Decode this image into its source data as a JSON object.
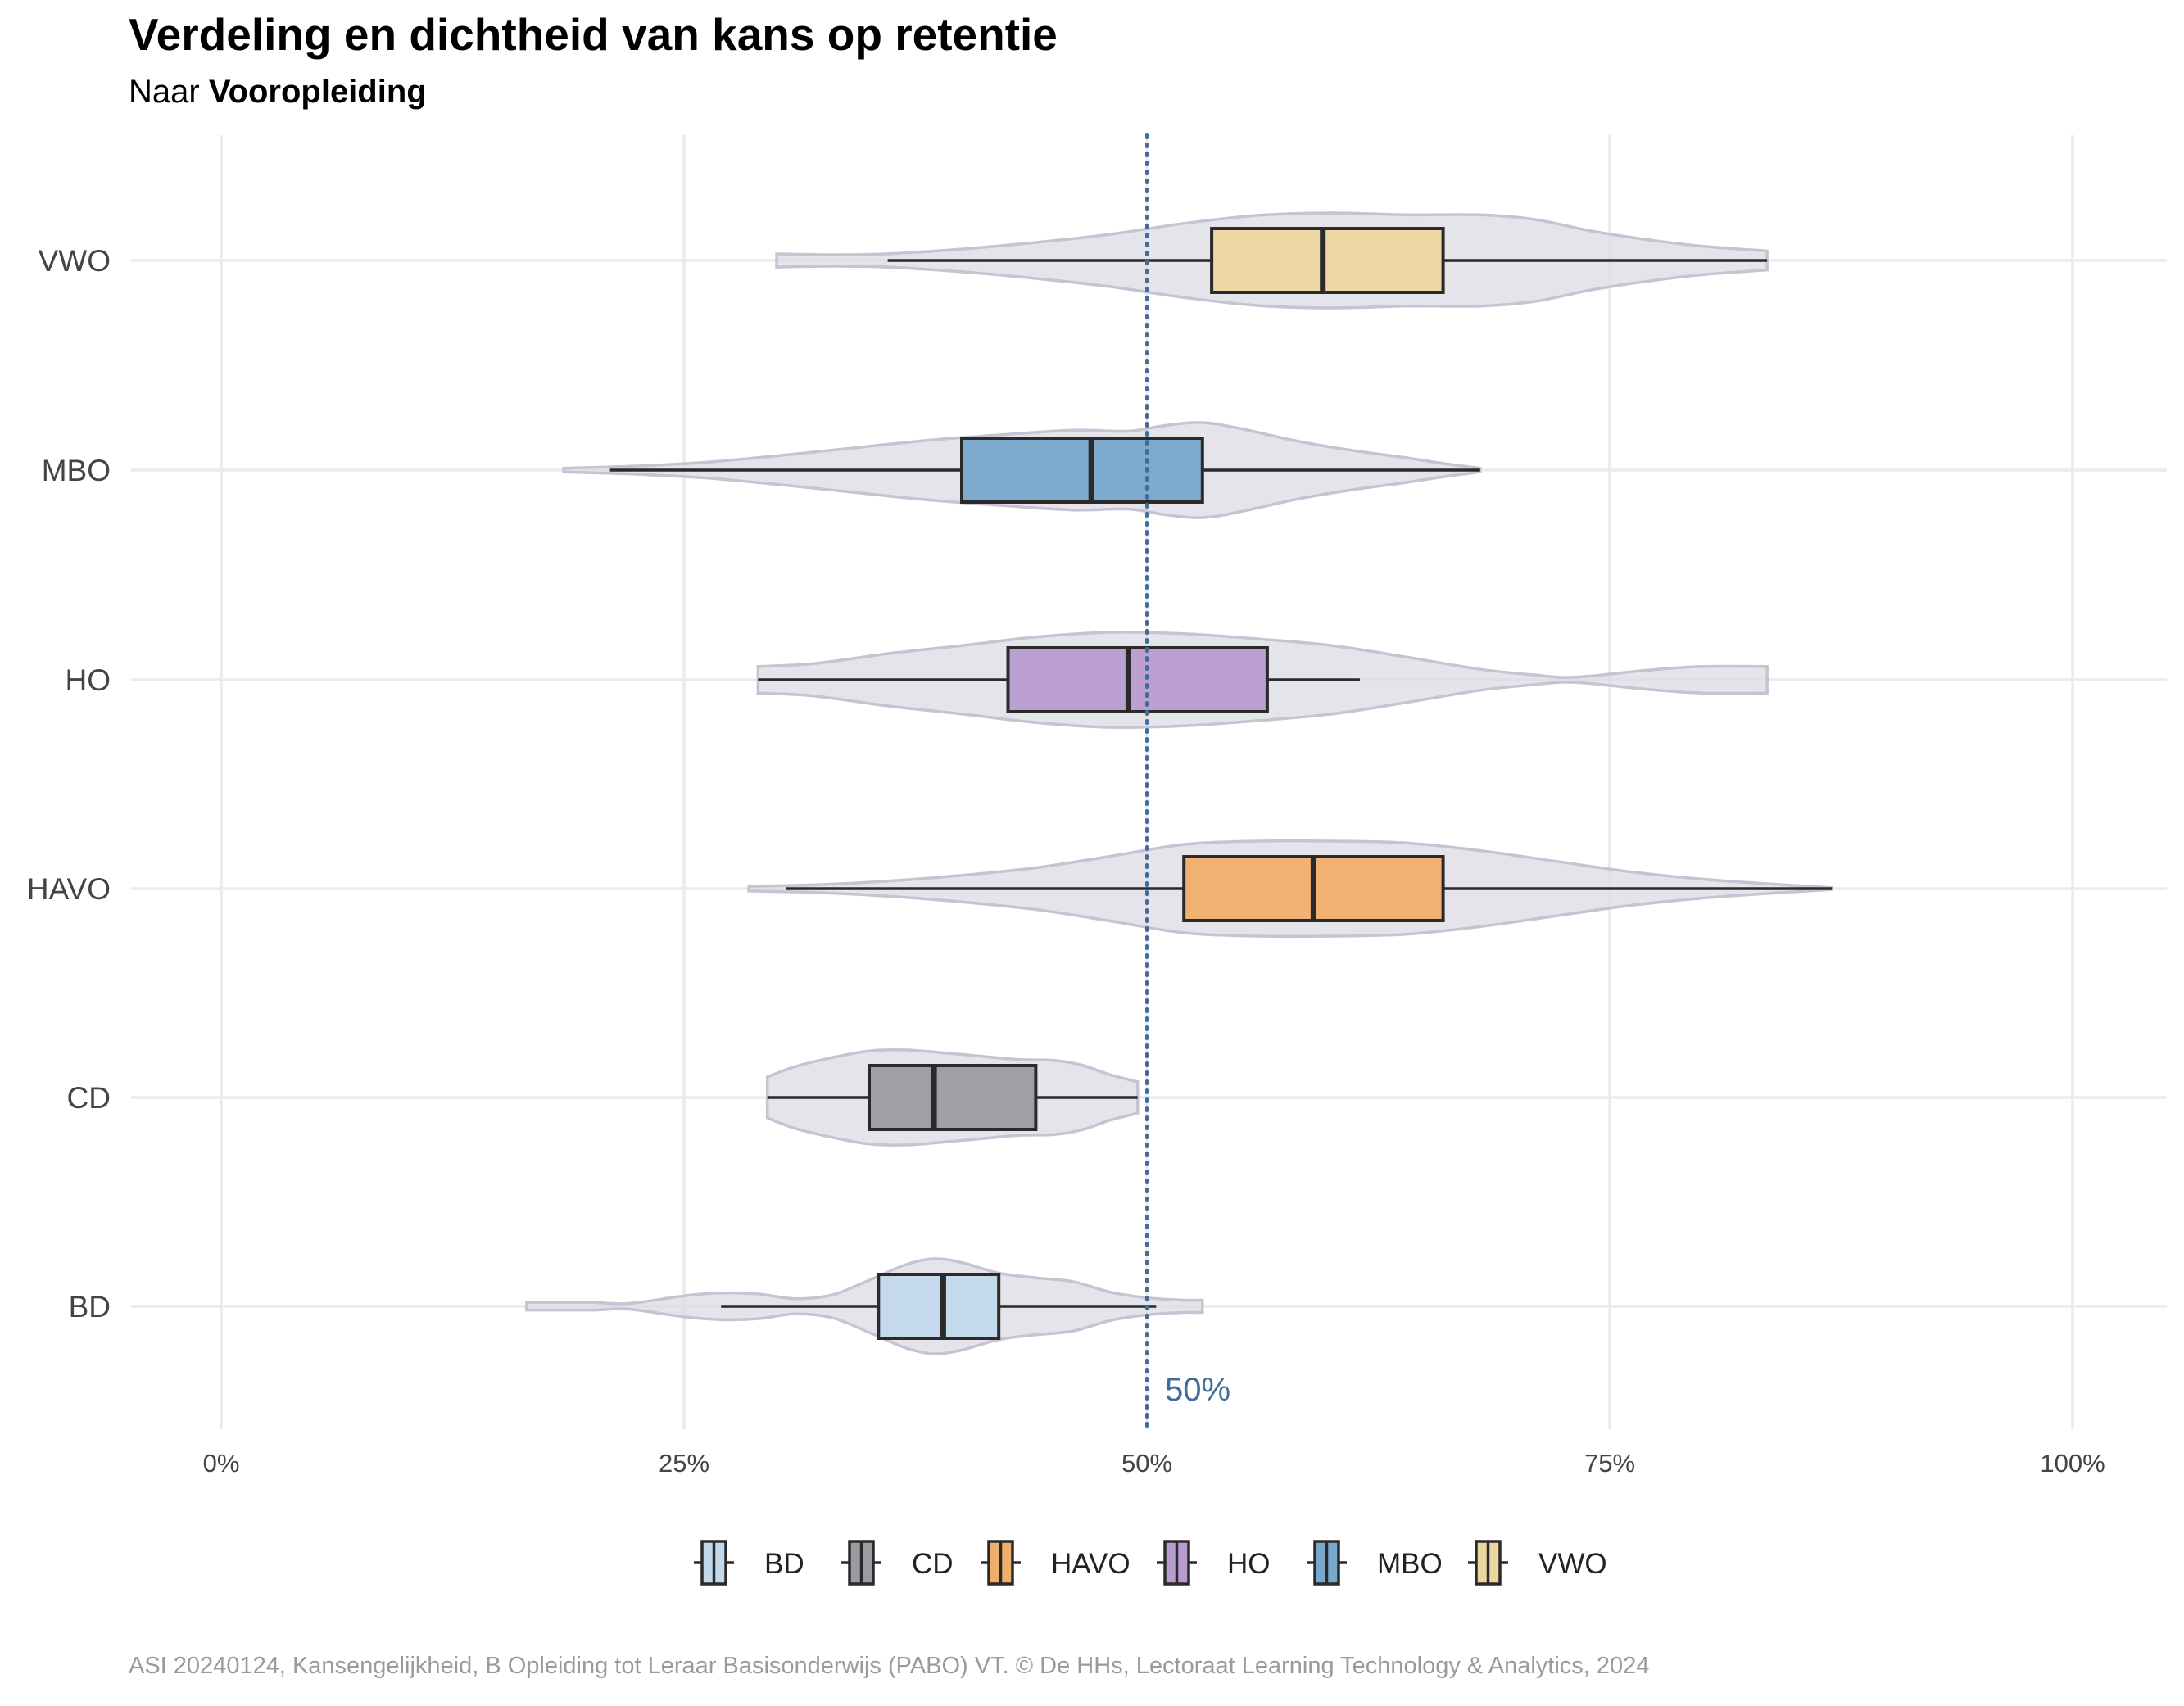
{
  "chart_data": {
    "type": "violin-boxplot",
    "orientation": "horizontal",
    "title": "Verdeling en dichtheid van kans op retentie",
    "subtitle_prefix": "Naar ",
    "subtitle_bold": "Vooropleiding",
    "xlabel": "",
    "ylabel": "",
    "xlim": [
      0,
      100
    ],
    "x_ticks": [
      0,
      25,
      50,
      75,
      100
    ],
    "x_tick_labels": [
      "0%",
      "25%",
      "50%",
      "75%",
      "100%"
    ],
    "grid": true,
    "reference_line": {
      "value": 50,
      "label": "50%",
      "color": "#3f6d9a",
      "style": "dotted"
    },
    "legend_position": "bottom",
    "categories": [
      "BD",
      "CD",
      "HAVO",
      "HO",
      "MBO",
      "VWO"
    ],
    "series": [
      {
        "name": "BD",
        "color": "#c2d9ec",
        "box": {
          "whisker_low": 27,
          "q1": 35.5,
          "median": 39,
          "q3": 42,
          "whisker_high": 50.5
        },
        "violin_range": [
          16.5,
          53
        ],
        "density": [
          [
            16.5,
            0.08
          ],
          [
            20,
            0.08
          ],
          [
            22,
            0.06
          ],
          [
            25,
            0.22
          ],
          [
            27,
            0.28
          ],
          [
            29,
            0.26
          ],
          [
            31,
            0.16
          ],
          [
            33,
            0.24
          ],
          [
            35,
            0.55
          ],
          [
            37,
            0.88
          ],
          [
            38.5,
            1.0
          ],
          [
            40,
            0.92
          ],
          [
            42,
            0.7
          ],
          [
            44,
            0.6
          ],
          [
            46,
            0.52
          ],
          [
            48,
            0.3
          ],
          [
            50,
            0.18
          ],
          [
            52,
            0.13
          ],
          [
            53,
            0.13
          ]
        ]
      },
      {
        "name": "CD",
        "color": "#9a9ca1",
        "box": {
          "whisker_low": 29.5,
          "q1": 35,
          "median": 38.5,
          "q3": 44,
          "whisker_high": 49.5
        },
        "violin_range": [
          29.5,
          49.5
        ],
        "density": [
          [
            29.5,
            0.43
          ],
          [
            31,
            0.65
          ],
          [
            33,
            0.84
          ],
          [
            35,
            0.98
          ],
          [
            37,
            1.0
          ],
          [
            39,
            0.94
          ],
          [
            41,
            0.87
          ],
          [
            43,
            0.8
          ],
          [
            45,
            0.78
          ],
          [
            46.5,
            0.68
          ],
          [
            48,
            0.48
          ],
          [
            49.5,
            0.33
          ]
        ]
      },
      {
        "name": "HAVO",
        "color": "#f0ae6c",
        "box": {
          "whisker_low": 30.5,
          "q1": 52,
          "median": 59,
          "q3": 66,
          "whisker_high": 87
        },
        "violin_range": [
          28.5,
          87
        ],
        "density": [
          [
            28.5,
            0.05
          ],
          [
            32,
            0.08
          ],
          [
            36,
            0.16
          ],
          [
            40,
            0.28
          ],
          [
            44,
            0.44
          ],
          [
            48,
            0.68
          ],
          [
            52,
            0.93
          ],
          [
            56,
            1.0
          ],
          [
            60,
            1.0
          ],
          [
            64,
            0.96
          ],
          [
            68,
            0.8
          ],
          [
            72,
            0.58
          ],
          [
            76,
            0.36
          ],
          [
            80,
            0.2
          ],
          [
            84,
            0.09
          ],
          [
            87,
            0.02
          ]
        ]
      },
      {
        "name": "HO",
        "color": "#b89cd0",
        "box": {
          "whisker_low": 29,
          "q1": 42.5,
          "median": 49,
          "q3": 56.5,
          "whisker_high": 61.5
        },
        "violin_range": [
          29,
          83.5
        ],
        "density": [
          [
            29,
            0.28
          ],
          [
            32,
            0.34
          ],
          [
            36,
            0.55
          ],
          [
            40,
            0.72
          ],
          [
            44,
            0.9
          ],
          [
            48,
            1.0
          ],
          [
            52,
            0.97
          ],
          [
            56,
            0.86
          ],
          [
            60,
            0.72
          ],
          [
            64,
            0.48
          ],
          [
            68,
            0.22
          ],
          [
            71,
            0.1
          ],
          [
            72.5,
            0.05
          ],
          [
            74,
            0.08
          ],
          [
            77,
            0.2
          ],
          [
            80,
            0.28
          ],
          [
            83.5,
            0.28
          ]
        ]
      },
      {
        "name": "MBO",
        "color": "#78a8cb",
        "box": {
          "whisker_low": 21,
          "q1": 40,
          "median": 47,
          "q3": 53,
          "whisker_high": 68
        },
        "violin_range": [
          18.5,
          68
        ],
        "density": [
          [
            18.5,
            0.04
          ],
          [
            22,
            0.08
          ],
          [
            26,
            0.16
          ],
          [
            30,
            0.3
          ],
          [
            34,
            0.46
          ],
          [
            38,
            0.62
          ],
          [
            42,
            0.74
          ],
          [
            46,
            0.84
          ],
          [
            49,
            0.82
          ],
          [
            51,
            0.94
          ],
          [
            53,
            1.0
          ],
          [
            55,
            0.88
          ],
          [
            58,
            0.62
          ],
          [
            61,
            0.42
          ],
          [
            64,
            0.26
          ],
          [
            66,
            0.14
          ],
          [
            68,
            0.04
          ]
        ]
      },
      {
        "name": "VWO",
        "color": "#edd7a1",
        "box": {
          "whisker_low": 36,
          "q1": 53.5,
          "median": 59.5,
          "q3": 66,
          "whisker_high": 83.5
        },
        "violin_range": [
          30,
          83.5
        ],
        "density": [
          [
            30,
            0.14
          ],
          [
            33,
            0.12
          ],
          [
            36,
            0.14
          ],
          [
            40,
            0.24
          ],
          [
            44,
            0.38
          ],
          [
            48,
            0.55
          ],
          [
            52,
            0.78
          ],
          [
            56,
            0.95
          ],
          [
            60,
            1.0
          ],
          [
            64,
            0.96
          ],
          [
            68,
            0.96
          ],
          [
            71,
            0.86
          ],
          [
            74,
            0.62
          ],
          [
            77,
            0.44
          ],
          [
            80,
            0.3
          ],
          [
            83.5,
            0.2
          ]
        ]
      }
    ]
  },
  "caption": "ASI 20240124, Kansengelijkheid, B Opleiding tot Leraar Basisonderwijs (PABO) VT. © De HHs, Lectoraat Learning Technology & Analytics, 2024"
}
